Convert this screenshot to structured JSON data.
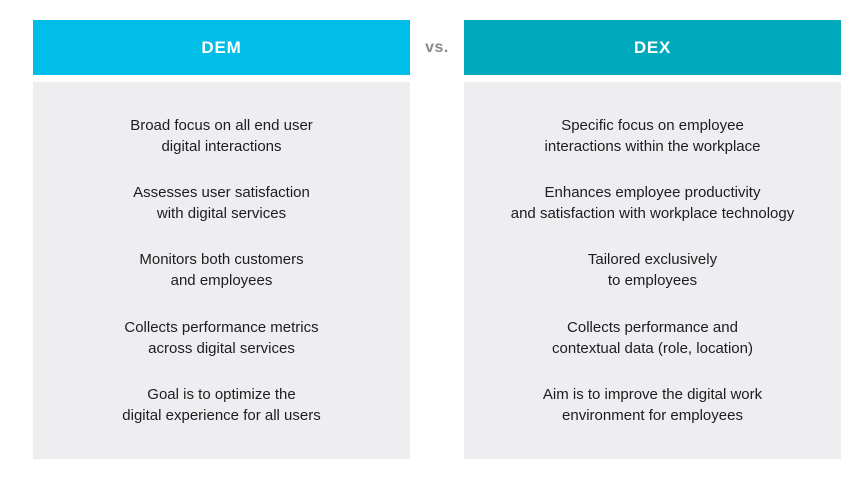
{
  "comparison": {
    "vs_label": "vs.",
    "columns": [
      {
        "title": "DEM",
        "rows": [
          "Broad focus on all end user\ndigital interactions",
          "Assesses user satisfaction\nwith digital services",
          "Monitors both customers\nand employees",
          "Collects performance metrics\nacross digital services",
          "Goal is to optimize the\ndigital experience for all users"
        ]
      },
      {
        "title": "DEX",
        "rows": [
          "Specific focus on employee\ninteractions within the workplace",
          "Enhances employee productivity\nand satisfaction with workplace technology",
          "Tailored exclusively\nto employees",
          "Collects performance and\ncontextual data (role, location)",
          "Aim is to improve the digital work\nenvironment for employees"
        ]
      }
    ]
  },
  "colors": {
    "dem_header_bg": "#00BEE8",
    "dex_header_bg": "#00A9BC",
    "panel_bg": "#EEEEF0",
    "header_text": "#FFFFFF",
    "vs_text": "#8A8A8A",
    "body_text": "#1D1D1F"
  }
}
